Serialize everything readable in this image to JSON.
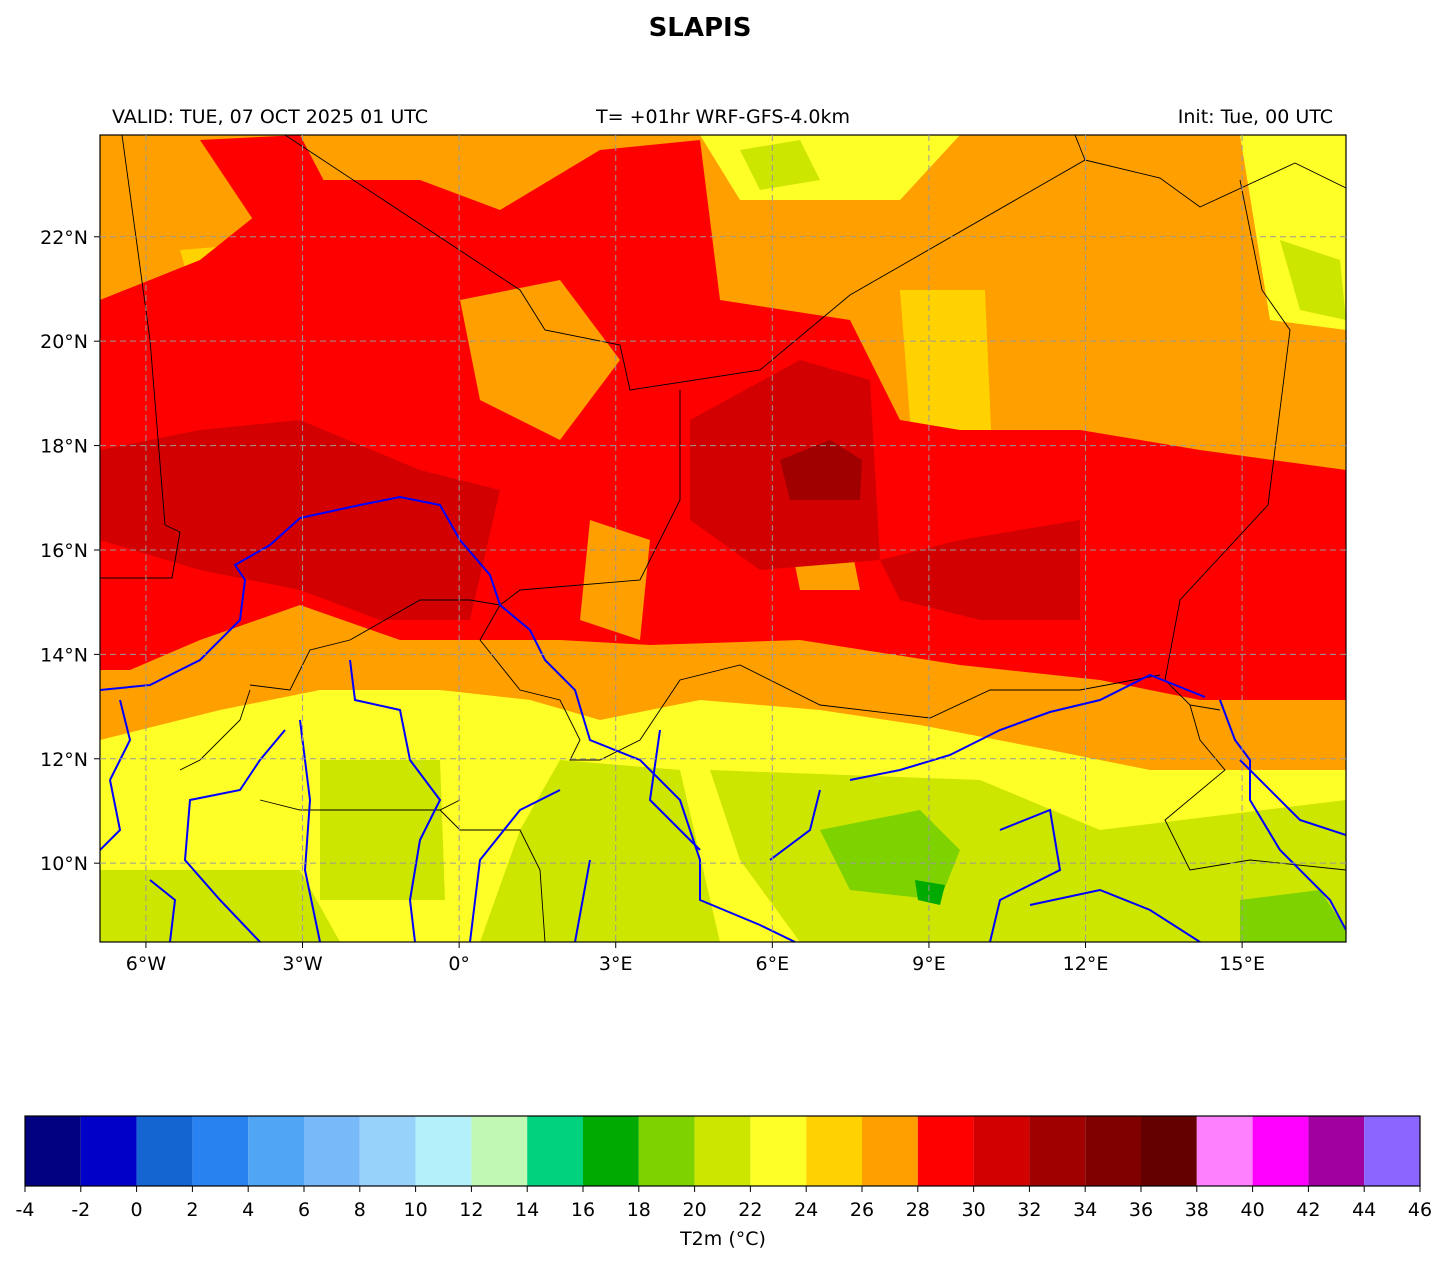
{
  "title": "SLAPIS",
  "header": {
    "valid": "VALID: TUE, 07 OCT 2025 01 UTC",
    "forecast": "T= +01hr WRF-GFS-4.0km",
    "init": "Init: Tue, 00 UTC"
  },
  "map": {
    "lonlim": [
      -6.88,
      16.99
    ],
    "latlim": [
      8.49,
      23.95
    ],
    "grid": true,
    "lonticks": [
      {
        "value": -6,
        "label": "6°W"
      },
      {
        "value": -3,
        "label": "3°W"
      },
      {
        "value": 0,
        "label": "0°"
      },
      {
        "value": 3,
        "label": "3°E"
      },
      {
        "value": 6,
        "label": "6°E"
      },
      {
        "value": 9,
        "label": "9°E"
      },
      {
        "value": 12,
        "label": "12°E"
      },
      {
        "value": 15,
        "label": "15°E"
      }
    ],
    "latticks": [
      {
        "value": 22,
        "label": "22°N"
      },
      {
        "value": 20,
        "label": "20°N"
      },
      {
        "value": 18,
        "label": "18°N"
      },
      {
        "value": 16,
        "label": "16°N"
      },
      {
        "value": 14,
        "label": "14°N"
      },
      {
        "value": 12,
        "label": "12°N"
      },
      {
        "value": 10,
        "label": "10°N"
      }
    ],
    "colorbar": {
      "label": "T2m (°C)",
      "bounds": [
        -4,
        -2,
        0,
        2,
        4,
        6,
        8,
        10,
        12,
        14,
        16,
        18,
        20,
        22,
        24,
        26,
        28,
        30,
        32,
        34,
        36,
        38,
        40,
        42,
        44,
        46
      ],
      "colors": [
        "#000080",
        "#0000c8",
        "#1464d2",
        "#2882f0",
        "#50a5f5",
        "#78b9fa",
        "#96d2fa",
        "#b4f0fa",
        "#c0f8b4",
        "#00d27d",
        "#00aa00",
        "#7dd200",
        "#cce600",
        "#ffff28",
        "#ffd200",
        "#ff9f00",
        "#ff0000",
        "#d20000",
        "#a00000",
        "#800000",
        "#640000",
        "#ff80ff",
        "#ff00ff",
        "#a000a0",
        "#8c64ff"
      ]
    }
  }
}
